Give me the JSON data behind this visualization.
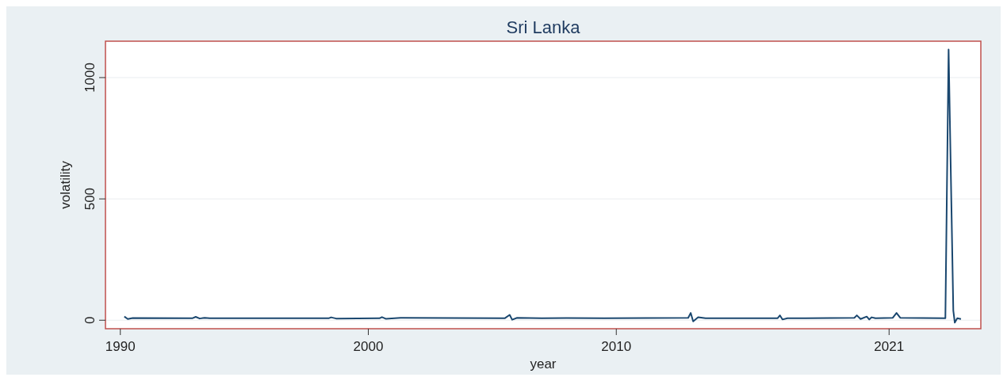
{
  "chart_data": {
    "type": "line",
    "title": "Sri Lanka",
    "xlabel": "year",
    "ylabel": "volatility",
    "xlim": [
      1989.4,
      2024.7
    ],
    "xticks": [
      1990,
      2000,
      2010,
      2021
    ],
    "ylim": [
      -35,
      1150
    ],
    "yticks": [
      0,
      500,
      1000
    ],
    "grid": "y",
    "series": [
      {
        "color": "#1a476f",
        "x": [
          1990.16,
          1990.3,
          1990.5,
          1992.9,
          1993.04,
          1993.2,
          1993.4,
          1993.6,
          1998.4,
          1998.5,
          1998.7,
          2000.45,
          2000.55,
          2000.7,
          2001.3,
          2005.5,
          2005.7,
          2005.8,
          2006.0,
          2007.0,
          2008.0,
          2009.5,
          2012.9,
          2013.0,
          2013.1,
          2013.3,
          2013.6,
          2016.5,
          2016.6,
          2016.7,
          2016.9,
          2019.6,
          2019.7,
          2019.85,
          2020.1,
          2020.2,
          2020.3,
          2020.45,
          2021.15,
          2021.3,
          2021.45,
          2023.27,
          2023.4,
          2023.59,
          2023.65,
          2023.75,
          2023.9
        ],
        "values": [
          15,
          5,
          9,
          8,
          14,
          7,
          10,
          8,
          8,
          12,
          7,
          8,
          13,
          6,
          10,
          8,
          22,
          2,
          10,
          8,
          9,
          8,
          10,
          30,
          -5,
          12,
          8,
          8,
          20,
          3,
          8,
          10,
          20,
          5,
          15,
          3,
          12,
          8,
          10,
          30,
          10,
          8,
          1116,
          40,
          -10,
          8,
          5
        ]
      }
    ]
  }
}
